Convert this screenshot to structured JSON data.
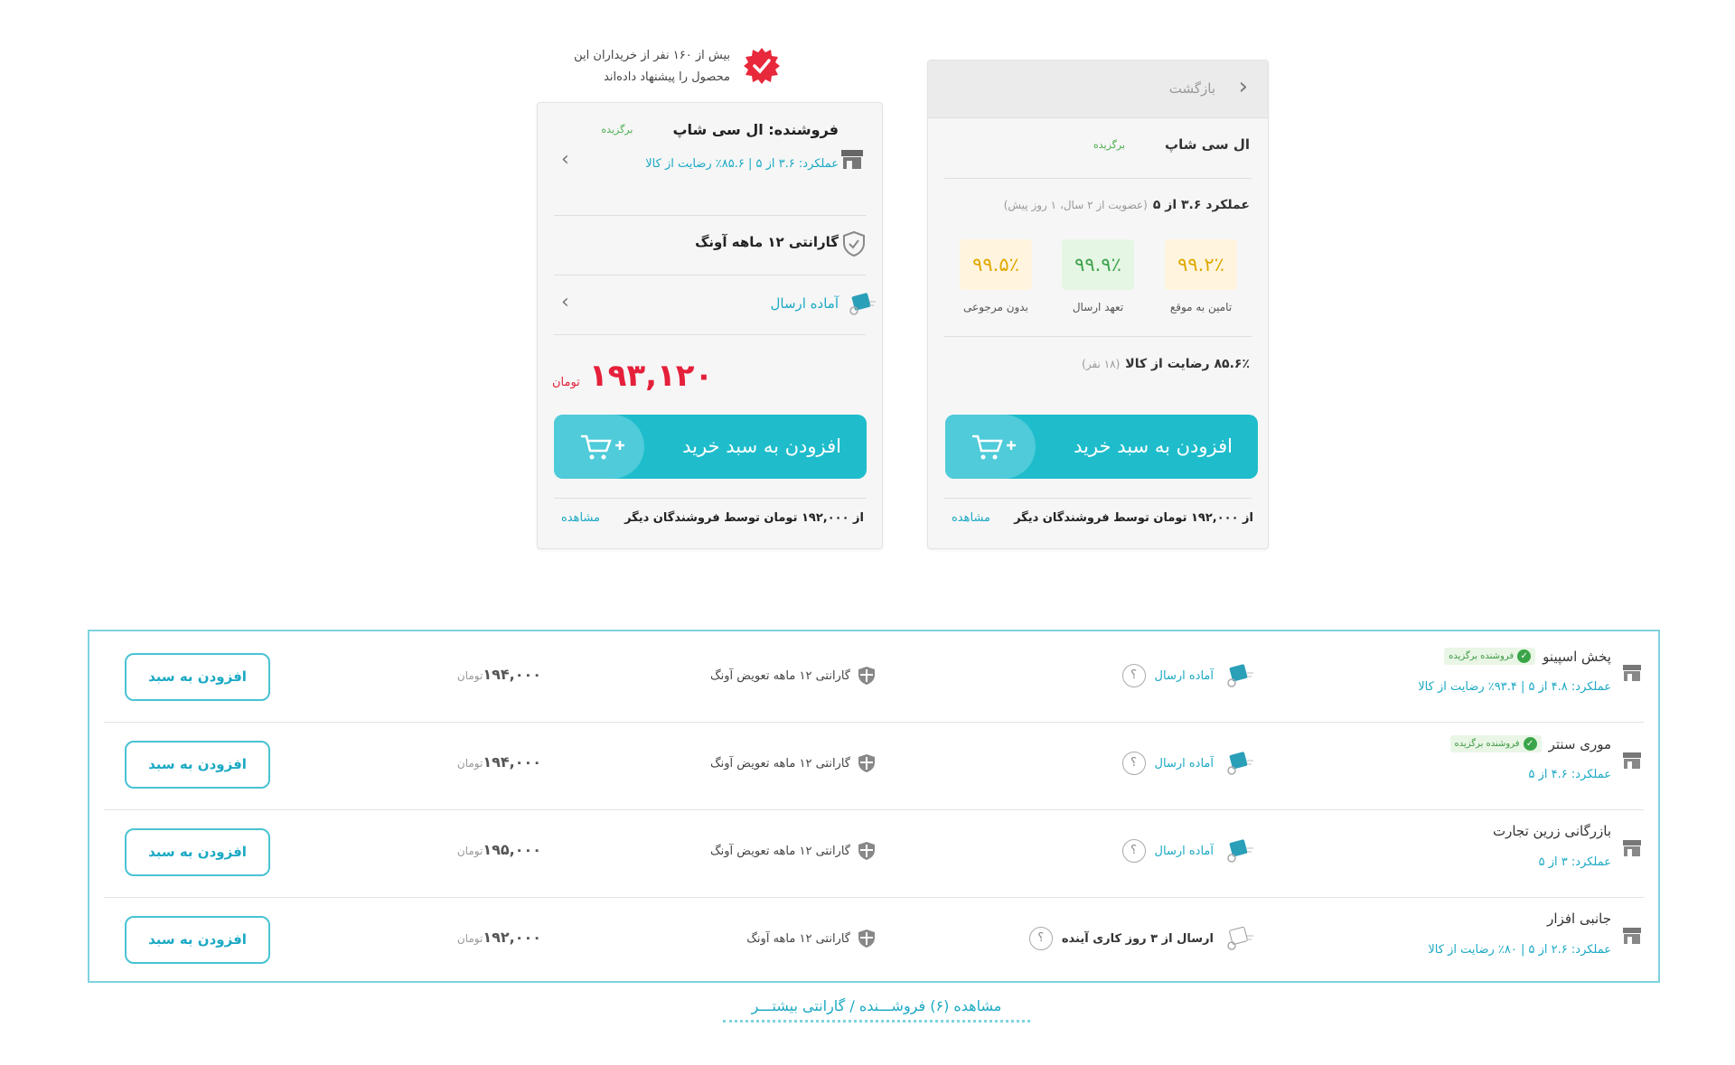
{
  "recommend": {
    "text_line1": "بیش از ۱۶۰ نفر از خریداران این",
    "text_line2": "محصول را پیشنهاد داده‌اند",
    "icon": "verified-badge-icon",
    "color": "#e8283b"
  },
  "buy_box": {
    "seller_label": "فروشنده: ال سی شاپ",
    "seller_badge": "برگزیده",
    "performance": "عملکرد: ۳.۶ از ۵  |  ۸۵.۶٪ رضایت از کالا",
    "guarantee": "گارانتی ۱۲ ماهه آونگ",
    "delivery": "آماده ارسال",
    "price": "۱۹۳,۱۲۰",
    "currency": "تومان",
    "add_to_cart": "افزودن به سبد خرید",
    "others_text": "از ۱۹۲,۰۰۰ تومان توسط فروشندگان دیگر",
    "others_link": "مشاهده"
  },
  "seller_panel": {
    "back_label": "بازگشت",
    "seller_name": "ال سی شاپ",
    "seller_badge": "برگزیده",
    "performance": "عملکرد ۳.۶ از ۵",
    "membership": "(عضویت از ۲ سال، ۱ روز پیش)",
    "metrics": [
      {
        "value": "۹۹.۲٪",
        "label": "تامین به موقع",
        "color": "#e0a800"
      },
      {
        "value": "۹۹.۹٪",
        "label": "تعهد ارسال",
        "color": "#3fa34d"
      },
      {
        "value": "۹۹.۵٪",
        "label": "بدون مرجوعی",
        "color": "#e0a800"
      }
    ],
    "satisfaction": "۸۵.۶٪ رضایت از کالا",
    "satisfaction_count": "(۱۸ نفر)",
    "add_to_cart": "افزودن به سبد خرید",
    "others_text": "از ۱۹۲,۰۰۰ تومان توسط فروشندگان دیگر",
    "others_link": "مشاهده"
  },
  "sellers": [
    {
      "name": "پخش اسپینو",
      "badge": "فروشنده برگزیده",
      "performance": "عملکرد: ۴.۸ از ۵  |  ۹۳.۴٪ رضایت از کالا",
      "delivery": "آماده ارسال",
      "delivery_ready": true,
      "guarantee": "گارانتی ۱۲ ماهه تعویض آونگ",
      "price": "۱۹۴,۰۰۰",
      "currency": "تومان",
      "button": "افزودن به سبد"
    },
    {
      "name": "موری سنتر",
      "badge": "فروشنده برگزیده",
      "performance": "عملکرد: ۴.۶ از ۵",
      "delivery": "آماده ارسال",
      "delivery_ready": true,
      "guarantee": "گارانتی ۱۲ ماهه تعویض آونگ",
      "price": "۱۹۴,۰۰۰",
      "currency": "تومان",
      "button": "افزودن به سبد"
    },
    {
      "name": "بازرگانی زرین تجارت",
      "badge": null,
      "performance": "عملکرد: ۳ از ۵",
      "delivery": "آماده ارسال",
      "delivery_ready": true,
      "guarantee": "گارانتی ۱۲ ماهه تعویض آونگ",
      "price": "۱۹۵,۰۰۰",
      "currency": "تومان",
      "button": "افزودن به سبد"
    },
    {
      "name": "جانبی افزار",
      "badge": null,
      "performance": "عملکرد: ۲.۶ از ۵  |  ۸۰٪ رضایت از کالا",
      "delivery": "ارسال از ۳ روز کاری آینده",
      "delivery_ready": false,
      "guarantee": "گارانتی ۱۲ ماهه آونگ",
      "price": "۱۹۲,۰۰۰",
      "currency": "تومان",
      "button": "افزودن به سبد"
    }
  ],
  "more_sellers_link": "مشاهده (۶) فروشـــنده / گارانتی بیشتـــر",
  "colors": {
    "accent": "#1fbdcc",
    "price": "#e5203a",
    "link": "#1ba9c4",
    "badge_green": "#3aa548"
  }
}
